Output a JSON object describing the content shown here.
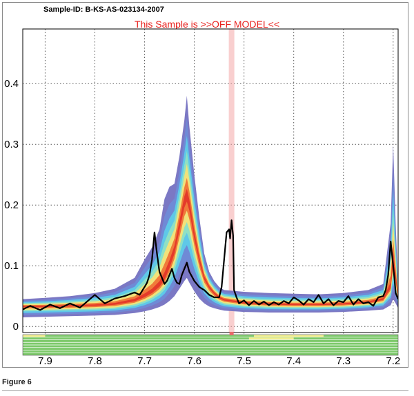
{
  "caption": "Figure 6",
  "chart_data": {
    "type": "line",
    "title": "Sample-ID: B-KS-AS-023134-2007",
    "subtitle": "This Sample is >>OFF MODEL<<",
    "xlabel": "",
    "ylabel": "",
    "x_reversed": true,
    "xlim": [
      7.945,
      7.19
    ],
    "ylim": [
      -0.01,
      0.49
    ],
    "x_ticks": [
      "7.9",
      "7.8",
      "7.7",
      "7.6",
      "7.5",
      "7.4",
      "7.3",
      "7.2"
    ],
    "y_ticks": [
      "0",
      "0.1",
      "0.2",
      "0.3",
      "0.4"
    ],
    "grid": true,
    "highlight_x": 7.525,
    "colors": {
      "sample_line": "#000000",
      "highlight": "#f4a7a7",
      "subtitle": "#e8201c",
      "band_outer": "#7b78c4",
      "band_mid": "#5fc8e8",
      "band_core": "#f07a3a",
      "strip_green": "#7cc96a",
      "strip_yellow": "#f1ee8c"
    },
    "model_band": {
      "x": [
        7.945,
        7.9,
        7.85,
        7.8,
        7.76,
        7.72,
        7.7,
        7.685,
        7.67,
        7.66,
        7.65,
        7.64,
        7.63,
        7.62,
        7.615,
        7.61,
        7.6,
        7.59,
        7.58,
        7.57,
        7.56,
        7.55,
        7.54,
        7.5,
        7.45,
        7.4,
        7.35,
        7.3,
        7.25,
        7.22,
        7.205,
        7.2,
        7.195,
        7.19
      ],
      "center": [
        0.033,
        0.033,
        0.034,
        0.035,
        0.037,
        0.043,
        0.05,
        0.057,
        0.068,
        0.08,
        0.1,
        0.125,
        0.165,
        0.205,
        0.215,
        0.2,
        0.15,
        0.11,
        0.08,
        0.065,
        0.055,
        0.048,
        0.044,
        0.039,
        0.037,
        0.036,
        0.036,
        0.037,
        0.04,
        0.045,
        0.065,
        0.11,
        0.08,
        0.05
      ],
      "lower": [
        0.015,
        0.016,
        0.017,
        0.018,
        0.019,
        0.022,
        0.025,
        0.028,
        0.032,
        0.036,
        0.042,
        0.05,
        0.062,
        0.075,
        0.08,
        0.072,
        0.058,
        0.046,
        0.038,
        0.033,
        0.03,
        0.028,
        0.026,
        0.024,
        0.023,
        0.023,
        0.023,
        0.024,
        0.026,
        0.028,
        0.035,
        0.045,
        0.038,
        0.03
      ],
      "upper": [
        0.045,
        0.047,
        0.05,
        0.055,
        0.062,
        0.08,
        0.11,
        0.13,
        0.16,
        0.21,
        0.23,
        0.235,
        0.28,
        0.34,
        0.38,
        0.33,
        0.25,
        0.18,
        0.12,
        0.09,
        0.075,
        0.065,
        0.06,
        0.057,
        0.055,
        0.054,
        0.053,
        0.055,
        0.06,
        0.07,
        0.17,
        0.3,
        0.17,
        0.07
      ]
    },
    "series": [
      {
        "name": "",
        "x": [
          7.945,
          7.93,
          7.91,
          7.89,
          7.87,
          7.85,
          7.83,
          7.81,
          7.8,
          7.78,
          7.76,
          7.74,
          7.72,
          7.71,
          7.7,
          7.695,
          7.69,
          7.685,
          7.68,
          7.675,
          7.67,
          7.66,
          7.655,
          7.65,
          7.645,
          7.64,
          7.635,
          7.63,
          7.625,
          7.62,
          7.615,
          7.61,
          7.6,
          7.59,
          7.58,
          7.57,
          7.56,
          7.55,
          7.545,
          7.54,
          7.535,
          7.53,
          7.528,
          7.525,
          7.522,
          7.52,
          7.515,
          7.51,
          7.5,
          7.49,
          7.48,
          7.47,
          7.46,
          7.45,
          7.44,
          7.43,
          7.42,
          7.41,
          7.4,
          7.39,
          7.38,
          7.37,
          7.36,
          7.35,
          7.34,
          7.33,
          7.32,
          7.31,
          7.3,
          7.29,
          7.28,
          7.27,
          7.26,
          7.25,
          7.24,
          7.23,
          7.22,
          7.215,
          7.21,
          7.205,
          7.2,
          7.197,
          7.195,
          7.19
        ],
        "values": [
          0.028,
          0.034,
          0.027,
          0.036,
          0.03,
          0.038,
          0.031,
          0.045,
          0.052,
          0.038,
          0.046,
          0.05,
          0.056,
          0.052,
          0.065,
          0.072,
          0.085,
          0.11,
          0.155,
          0.12,
          0.09,
          0.07,
          0.075,
          0.085,
          0.095,
          0.08,
          0.072,
          0.07,
          0.085,
          0.095,
          0.105,
          0.09,
          0.075,
          0.065,
          0.06,
          0.052,
          0.048,
          0.048,
          0.065,
          0.11,
          0.155,
          0.16,
          0.145,
          0.175,
          0.15,
          0.06,
          0.048,
          0.038,
          0.043,
          0.035,
          0.042,
          0.036,
          0.041,
          0.035,
          0.04,
          0.036,
          0.042,
          0.038,
          0.048,
          0.043,
          0.036,
          0.045,
          0.04,
          0.052,
          0.038,
          0.045,
          0.035,
          0.042,
          0.04,
          0.05,
          0.036,
          0.045,
          0.038,
          0.04,
          0.034,
          0.048,
          0.05,
          0.06,
          0.085,
          0.14,
          0.1,
          0.075,
          0.055,
          0.045
        ]
      }
    ],
    "status_strip": {
      "rows": 8,
      "yellow_segments": [
        {
          "row": 0,
          "from": 7.945,
          "to": 7.9
        },
        {
          "row": 0,
          "from": 7.48,
          "to": 7.34
        },
        {
          "row": 1,
          "from": 7.49,
          "to": 7.4
        }
      ]
    }
  }
}
